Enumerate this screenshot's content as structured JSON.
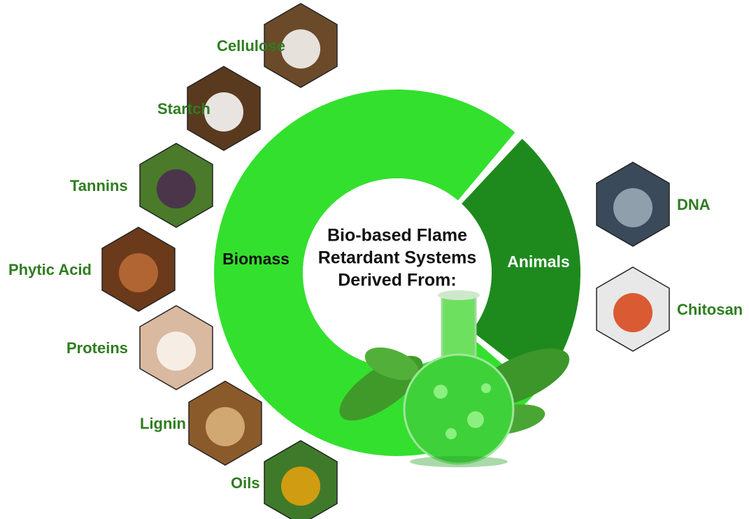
{
  "center_title": [
    "Bio-based Flame",
    "Retardant Systems",
    "Derived From:"
  ],
  "segments": [
    {
      "label": "Biomass",
      "items": [
        "Cellulose",
        "Startch",
        "Tannins",
        "Phytic Acid",
        "Proteins",
        "Lignin",
        "Oils"
      ]
    },
    {
      "label": "Animals",
      "items": [
        "DNA",
        "Chitosan"
      ]
    }
  ]
}
